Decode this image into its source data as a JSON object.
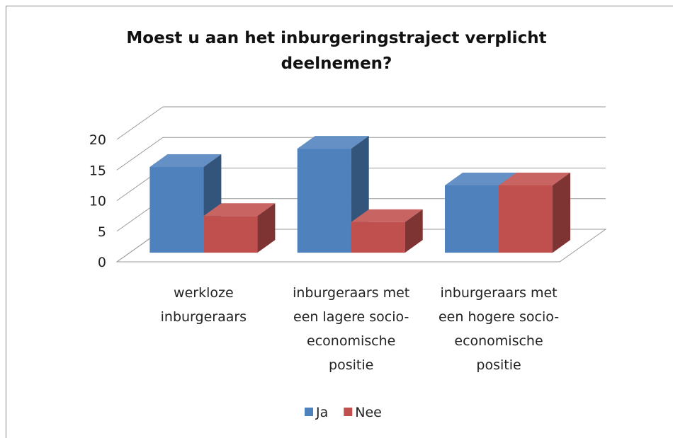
{
  "chart_data": {
    "type": "bar3d",
    "title": "Moest u aan het inburgeringstraject verplicht deelnemen?",
    "categories": [
      [
        "werkloze",
        "inburgeraars"
      ],
      [
        "inburgeraars met",
        "een lagere socio-",
        "economische",
        "positie"
      ],
      [
        "inburgeraars met",
        "een hogere socio-",
        "economische",
        "positie"
      ]
    ],
    "series": [
      {
        "name": "Ja",
        "color": "#4f81bd",
        "values": [
          14,
          17,
          11
        ]
      },
      {
        "name": "Nee",
        "color": "#c0504d",
        "values": [
          6,
          5,
          11
        ]
      }
    ],
    "ylim": [
      0,
      20
    ],
    "yticks": [
      0,
      5,
      10,
      15,
      20
    ],
    "grid": true,
    "legend": "bottom"
  }
}
